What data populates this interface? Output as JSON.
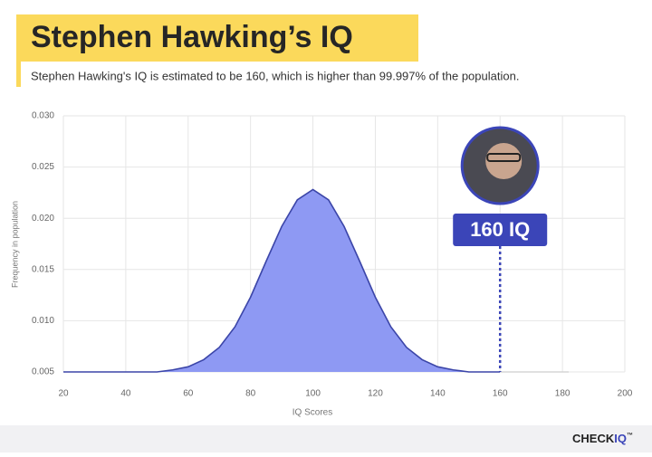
{
  "chart_data": {
    "type": "area",
    "title": "Stephen Hawking’s IQ",
    "subtitle": "Stephen Hawking's IQ is estimated to be 160, which is higher than 99.997% of the population.",
    "x_label": "IQ Scores",
    "y_label": "Frequency in population",
    "series": [
      {
        "color": "#8e99f3",
        "line_color": "#3b45a8",
        "x": [
          20,
          25,
          30,
          35,
          40,
          45,
          50,
          55,
          60,
          65,
          70,
          75,
          80,
          85,
          90,
          95,
          100,
          105,
          110,
          115,
          120,
          125,
          130,
          135,
          140,
          145,
          150,
          155,
          160
        ],
        "values": [
          0.005,
          0.005,
          0.005,
          0.005,
          0.005,
          0.005,
          0.005,
          0.0052,
          0.0055,
          0.0062,
          0.0074,
          0.0094,
          0.0123,
          0.0158,
          0.0192,
          0.0218,
          0.0228,
          0.0218,
          0.0192,
          0.0158,
          0.0123,
          0.0094,
          0.0074,
          0.0062,
          0.0055,
          0.0052,
          0.005,
          0.005,
          0.005
        ]
      },
      {
        "color": "#d6d6d6",
        "x": [
          160,
          182
        ],
        "values": [
          0.005,
          0.005
        ]
      }
    ],
    "xlim": [
      20,
      200
    ],
    "xticks": [
      20,
      40,
      60,
      80,
      100,
      120,
      140,
      160,
      180,
      200
    ],
    "ylim": [
      0.005,
      0.03
    ],
    "yticks": [
      0.005,
      {
        "value": 0.01,
        "label": "0.010"
      },
      0.015,
      {
        "value": 0.02,
        "label": "0.020"
      },
      0.025,
      {
        "value": 0.03,
        "label": "0.030"
      }
    ],
    "grid": true,
    "annotation": {
      "x": 160,
      "label": "160 IQ",
      "color": "#3b45b8"
    }
  },
  "brand": {
    "name": "CHECK",
    "accent": "IQ",
    "mark": "™"
  }
}
